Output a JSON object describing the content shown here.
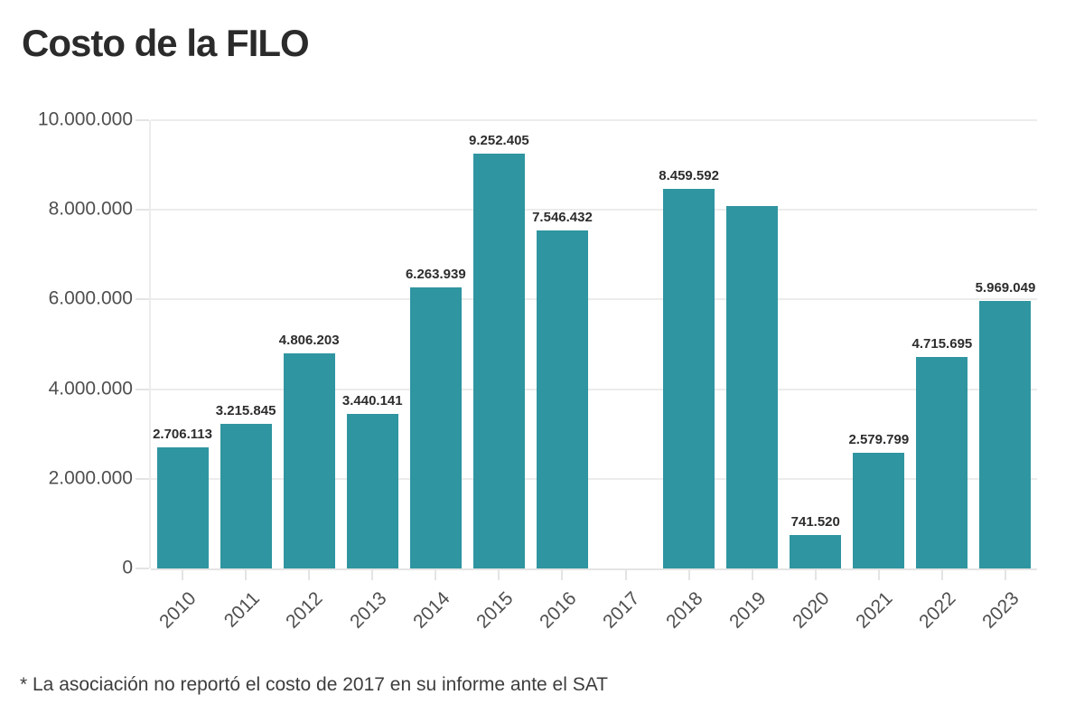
{
  "title": "Costo de la FILO",
  "footnote": "* La asociación no reportó el costo de 2017 en su informe ante el SAT",
  "colors": {
    "bar": "#2f95a0",
    "grid": "#ececec",
    "axis_text": "#4f4f4f",
    "bar_label_text": "#2d2d2d",
    "title_text": "#2b2b2b"
  },
  "chart_data": {
    "type": "bar",
    "title": "Costo de la FILO",
    "categories": [
      "2010",
      "2011",
      "2012",
      "2013",
      "2014",
      "2015",
      "2016",
      "2017",
      "2018",
      "2019",
      "2020",
      "2021",
      "2022",
      "2023"
    ],
    "values": [
      2706113,
      3215845,
      4806203,
      3440141,
      6263939,
      9252405,
      7546432,
      null,
      8459592,
      8080000,
      741520,
      2579799,
      4715695,
      5969049
    ],
    "bar_labels": [
      "2.706.113",
      "3.215.845",
      "4.806.203",
      "3.440.141",
      "6.263.939",
      "9.252.405",
      "7.546.432",
      "",
      "8.459.592",
      "",
      "741.520",
      "2.579.799",
      "4.715.695",
      "5.969.049"
    ],
    "value_notes": {
      "2017": "no bar shown (value not reported)",
      "2019": "bar shown without data label; value estimated from bar height"
    },
    "ylim": [
      0,
      10000000
    ],
    "yticks": [
      0,
      2000000,
      4000000,
      6000000,
      8000000,
      10000000
    ],
    "ytick_labels": [
      "0",
      "2.000.000",
      "4.000.000",
      "6.000.000",
      "8.000.000",
      "10.000.000"
    ],
    "xlabel": "",
    "ylabel": "",
    "grid": true,
    "legend": "none"
  }
}
